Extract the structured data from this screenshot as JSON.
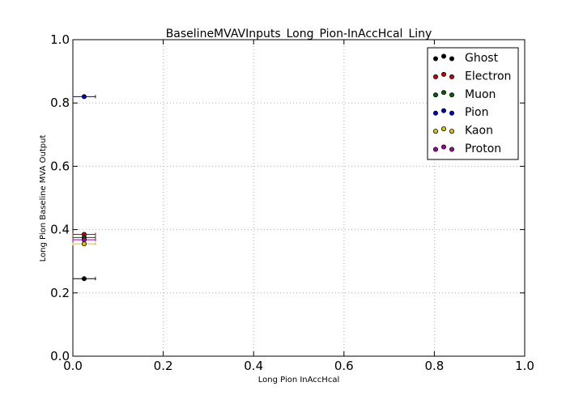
{
  "chart_data": {
    "type": "scatter",
    "title": "BaselineMVAVInputs_Long_Pion-InAccHcal_Liny",
    "xlabel": "Long Pion InAccHcal",
    "ylabel": "Long Pion Baseline MVA Output",
    "xlim": [
      0.0,
      1.0
    ],
    "ylim": [
      0.0,
      1.0
    ],
    "xticks": [
      "0.0",
      "0.2",
      "0.4",
      "0.6",
      "0.8",
      "1.0"
    ],
    "yticks": [
      "0.0",
      "0.2",
      "0.4",
      "0.6",
      "0.8",
      "1.0"
    ],
    "grid": true,
    "legend_position": "top-right",
    "series": [
      {
        "name": "Ghost",
        "color": "#000000",
        "points": [
          {
            "x": 0.025,
            "y": 0.245,
            "xerr": 0.025
          }
        ]
      },
      {
        "name": "Electron",
        "color": "#cc0000",
        "points": [
          {
            "x": 0.025,
            "y": 0.385,
            "xerr": 0.025
          }
        ]
      },
      {
        "name": "Muon",
        "color": "#006600",
        "points": [
          {
            "x": 0.025,
            "y": 0.375,
            "xerr": 0.025
          }
        ]
      },
      {
        "name": "Pion",
        "color": "#0000cc",
        "points": [
          {
            "x": 0.025,
            "y": 0.82,
            "xerr": 0.025
          }
        ]
      },
      {
        "name": "Kaon",
        "color": "#e6c300",
        "points": [
          {
            "x": 0.025,
            "y": 0.355,
            "xerr": 0.025
          }
        ]
      },
      {
        "name": "Proton",
        "color": "#aa00aa",
        "points": [
          {
            "x": 0.025,
            "y": 0.368,
            "xerr": 0.025
          }
        ]
      }
    ]
  }
}
